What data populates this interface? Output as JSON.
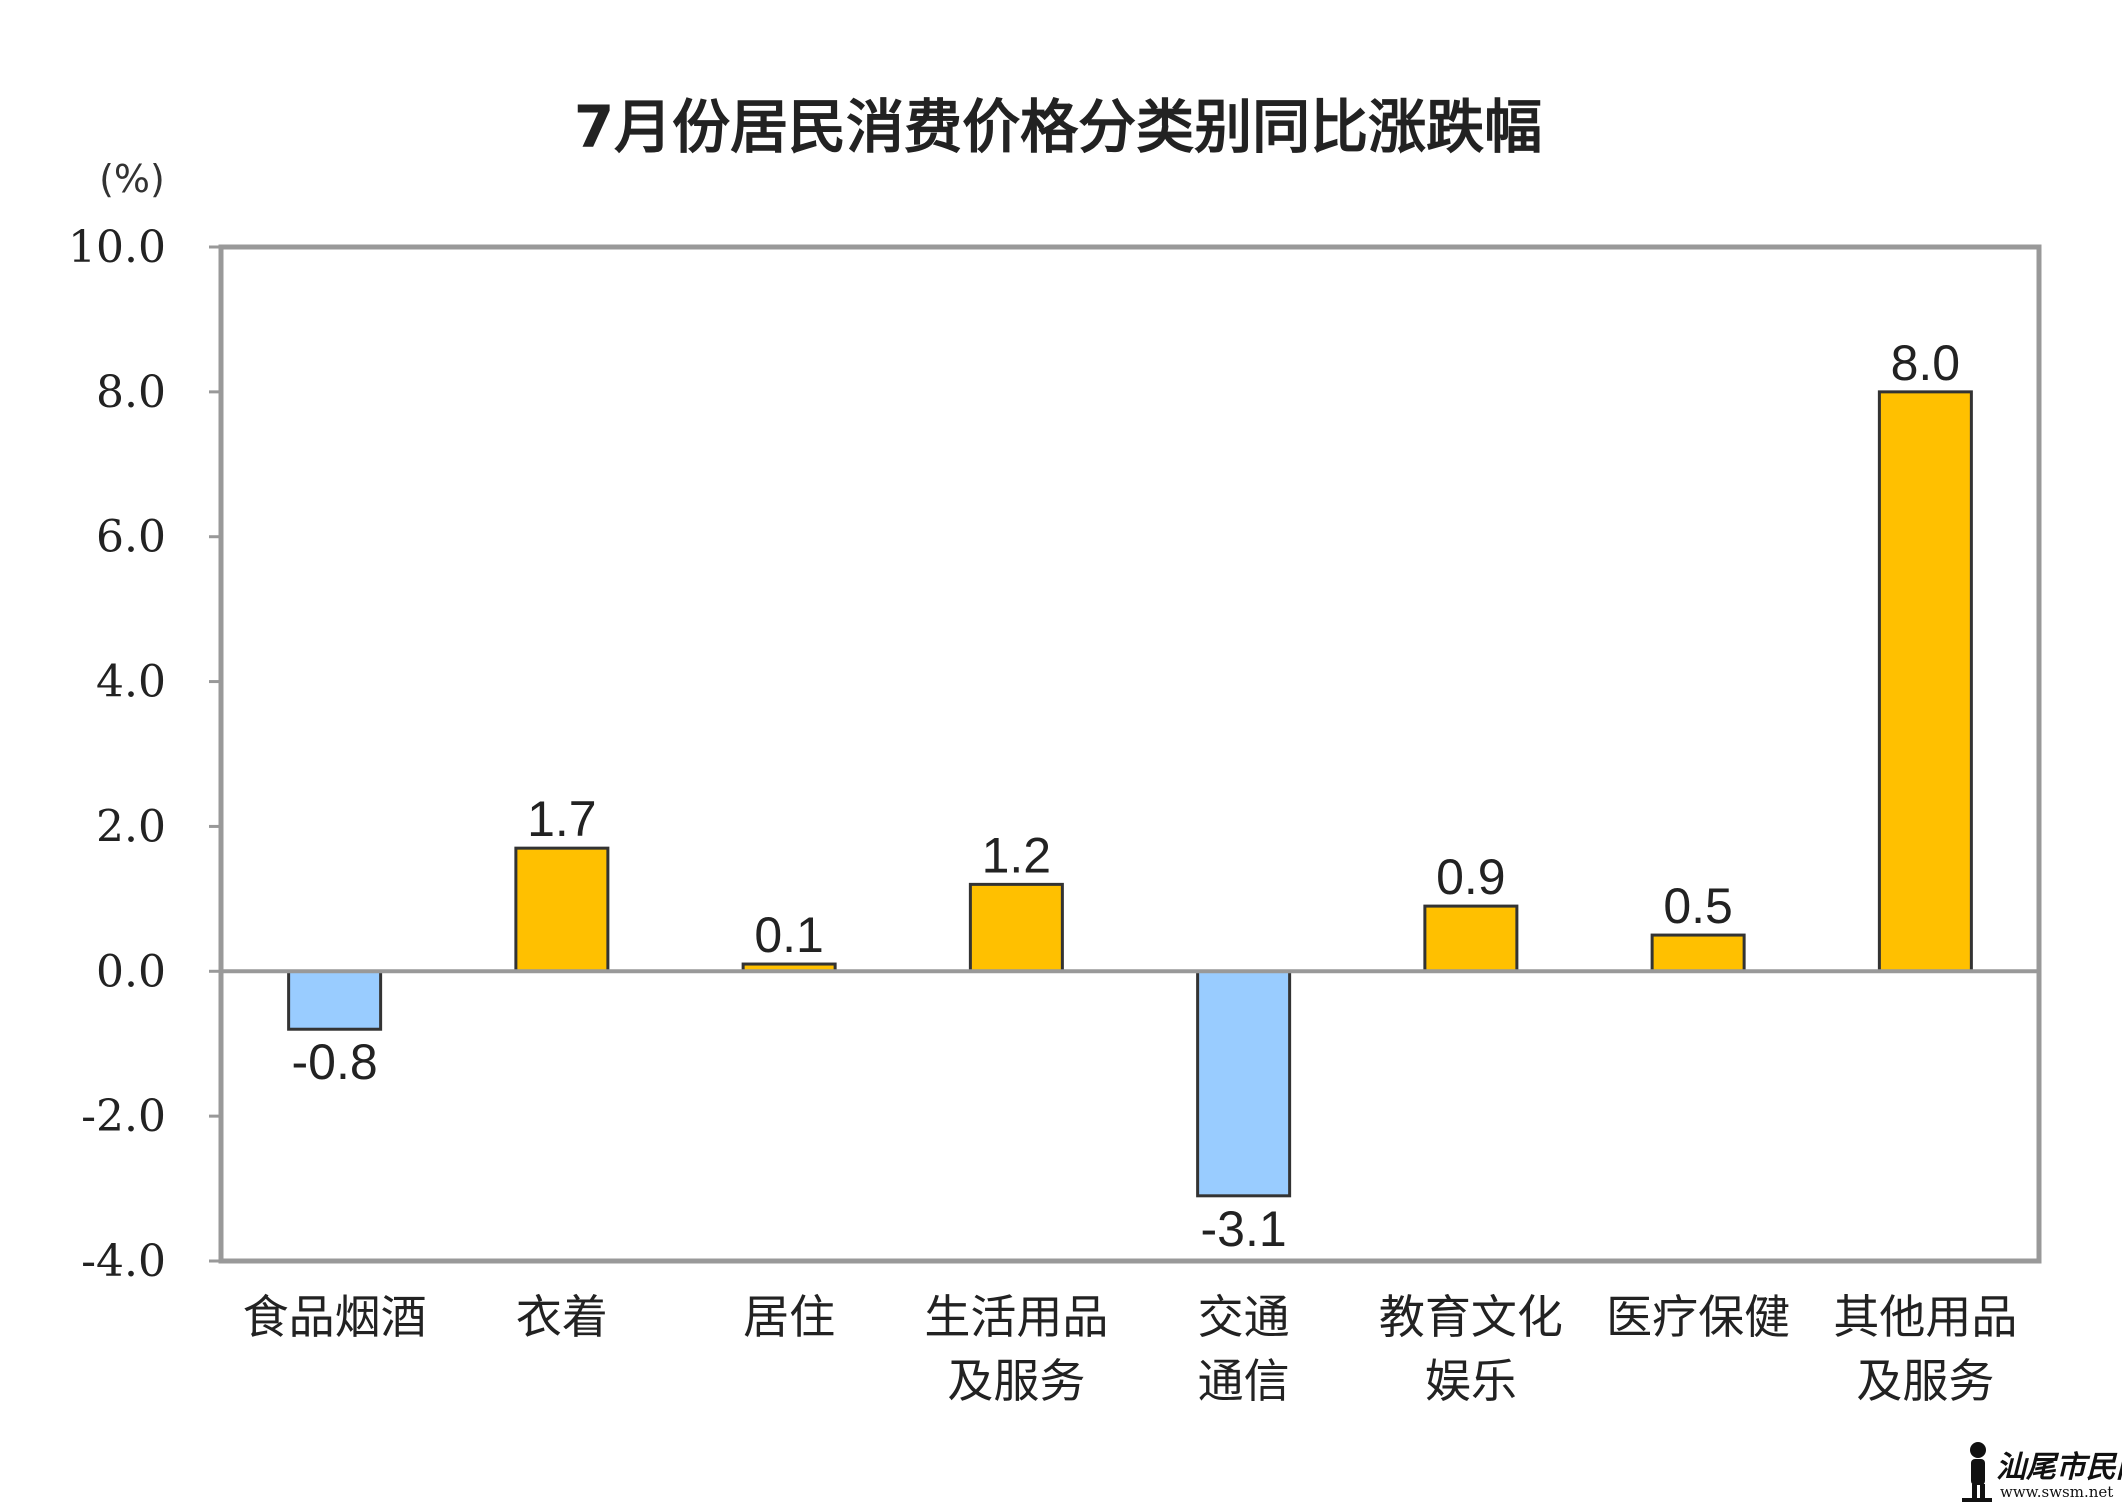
{
  "chart_data": {
    "type": "bar",
    "title": "7月份居民消费价格分类别同比涨跌幅",
    "ylabel": "(%)",
    "xlabel": "",
    "ylim": [
      -4.0,
      10.0
    ],
    "yticks": [
      "10.0",
      "8.0",
      "6.0",
      "4.0",
      "2.0",
      "0.0",
      "-2.0",
      "-4.0"
    ],
    "ytick_values": [
      10,
      8,
      6,
      4,
      2,
      0,
      -2,
      -4
    ],
    "grid": false,
    "legend": "none",
    "categories": [
      [
        "食品烟酒"
      ],
      [
        "衣着"
      ],
      [
        "居住"
      ],
      [
        "生活用品",
        "及服务"
      ],
      [
        "交通",
        "通信"
      ],
      [
        "教育文化",
        "娱乐"
      ],
      [
        "医疗保健"
      ],
      [
        "其他用品",
        "及服务"
      ]
    ],
    "values": [
      -0.8,
      1.7,
      0.1,
      1.2,
      -3.1,
      0.9,
      0.5,
      8.0
    ],
    "value_labels": [
      "-0.8",
      "1.7",
      "0.1",
      "1.2",
      "-3.1",
      "0.9",
      "0.5",
      "8.0"
    ],
    "colors": {
      "positive": "#FFC000",
      "negative": "#99CCFF",
      "outline": "#333333",
      "frame": "#999999"
    }
  },
  "watermark": {
    "text": "汕尾市民网",
    "url": "www.swsm.net"
  }
}
